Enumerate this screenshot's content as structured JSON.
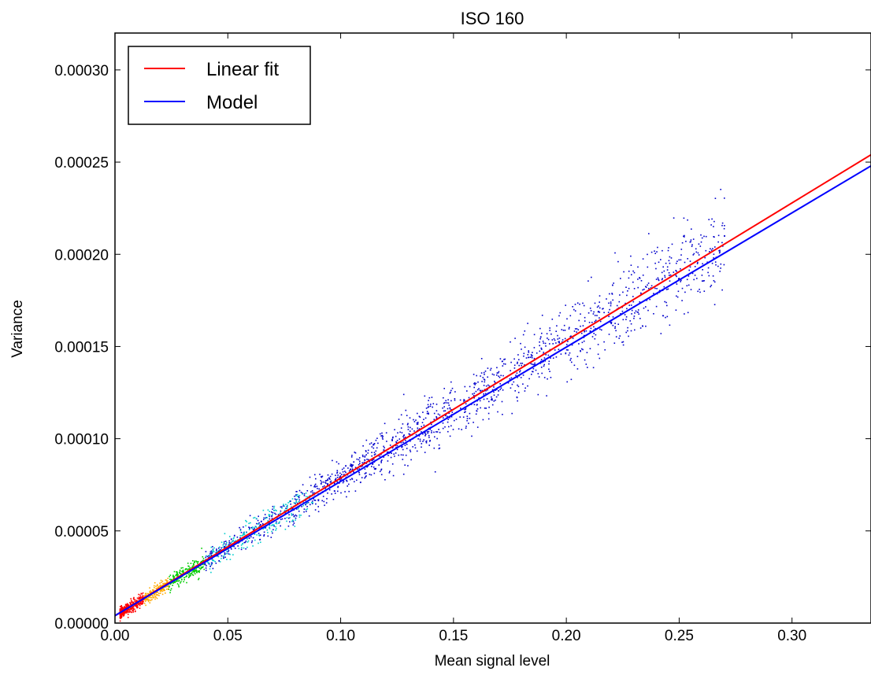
{
  "chart_data": {
    "type": "scatter",
    "title": "ISO 160",
    "xlabel": "Mean signal level",
    "ylabel": "Variance",
    "xlim": [
      0.0,
      0.335
    ],
    "ylim": [
      0.0,
      0.00032
    ],
    "x_ticks": [
      0.0,
      0.05,
      0.1,
      0.15,
      0.2,
      0.25,
      0.3
    ],
    "x_tick_labels": [
      "0.00",
      "0.05",
      "0.10",
      "0.15",
      "0.20",
      "0.25",
      "0.30"
    ],
    "y_ticks": [
      0.0,
      5e-05,
      0.0001,
      0.00015,
      0.0002,
      0.00025,
      0.0003
    ],
    "y_tick_labels": [
      "0.00000",
      "0.00005",
      "0.00010",
      "0.00015",
      "0.00020",
      "0.00025",
      "0.00030"
    ],
    "grid": false,
    "legend": "top-left",
    "series": [
      {
        "name": "Linear fit",
        "kind": "line",
        "color": "#ff0000",
        "x": [
          0.0,
          0.335
        ],
        "y": [
          4e-06,
          0.000254
        ]
      },
      {
        "name": "Model",
        "kind": "line",
        "color": "#0000ff",
        "x": [
          0.0,
          0.335
        ],
        "y": [
          4e-06,
          0.000248
        ]
      }
    ],
    "scatter": {
      "x_range": [
        0.002,
        0.27
      ],
      "relation": {
        "intercept": 4e-06,
        "slope": 0.00075
      },
      "color_scale": [
        "#ff0000",
        "#ffaa00",
        "#00cc00",
        "#00cccc",
        "#0000cc"
      ]
    }
  }
}
